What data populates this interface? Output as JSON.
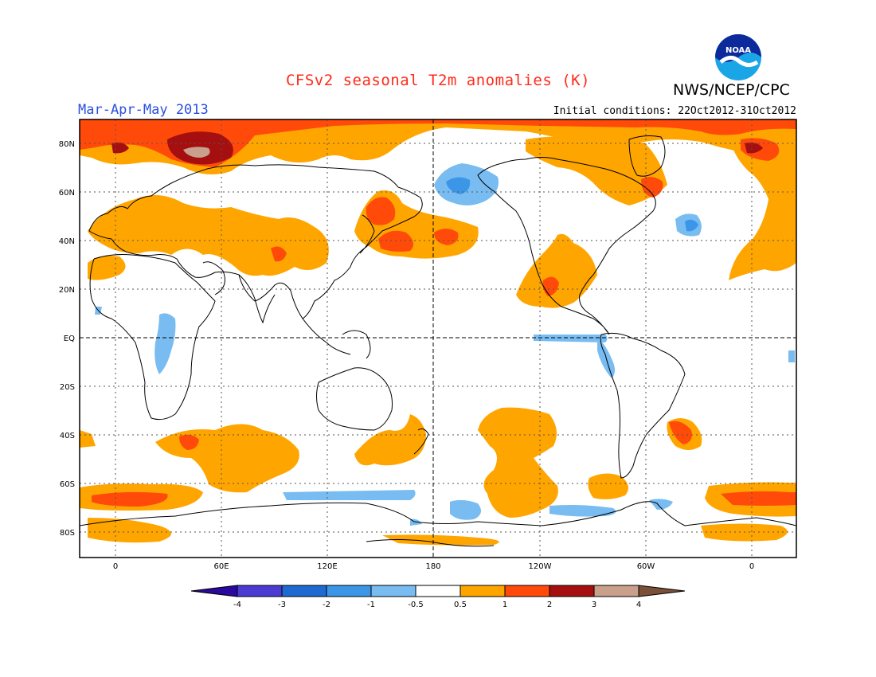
{
  "header": {
    "title": "CFSv2 seasonal T2m anomalies (K)",
    "agency": "NWS/NCEP/CPC",
    "period": "Mar-Apr-May 2013",
    "initial_conditions": "Initial conditions: 22Oct2012-31Oct2012",
    "logo_text": "NOAA"
  },
  "axes": {
    "lat_labels": [
      "80N",
      "60N",
      "40N",
      "20N",
      "EQ",
      "20S",
      "40S",
      "60S",
      "80S"
    ],
    "lon_labels": [
      "0",
      "60E",
      "120E",
      "180",
      "120W",
      "60W",
      "0"
    ]
  },
  "legend": {
    "labels": [
      "-4",
      "-3",
      "-2",
      "-1",
      "-0.5",
      "0.5",
      "1",
      "2",
      "3",
      "4"
    ],
    "colors": [
      "#2a0a9e",
      "#4b3bd2",
      "#1e6ad2",
      "#3c96e8",
      "#78bcf2",
      "#ffffff",
      "#ffa500",
      "#ff4a0a",
      "#a50f0f",
      "#c8a08c",
      "#7a5038"
    ]
  },
  "colors": {
    "title": "#ff2a1a",
    "period": "#2a4fe0",
    "warm1": "#ffa500",
    "warm2": "#ff4a0a",
    "warm3": "#a50f0f",
    "warm4": "#c8a08c",
    "cool1": "#78bcf2",
    "cool2": "#3c96e8"
  }
}
